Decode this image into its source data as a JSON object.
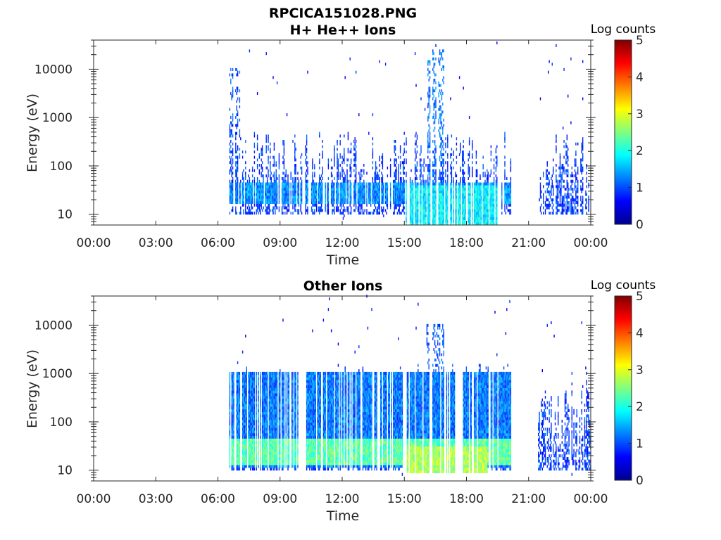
{
  "figure_title": "RPCICA151028.PNG",
  "chart_data": [
    {
      "type": "heatmap",
      "title": "H+ He++ Ions",
      "xlabel": "Time",
      "ylabel": "Energy (eV)",
      "x_ticks": [
        "00:00",
        "03:00",
        "06:00",
        "09:00",
        "12:00",
        "15:00",
        "18:00",
        "21:00",
        "00:00"
      ],
      "x_range_hours": [
        0,
        24
      ],
      "y_scale": "log",
      "y_ticks": [
        10,
        100,
        1000,
        10000
      ],
      "y_range": [
        6,
        40000
      ],
      "colorbar": {
        "label": "Log counts",
        "range": [
          0,
          5
        ],
        "ticks": [
          0,
          1,
          2,
          3,
          4,
          5
        ],
        "colormap": "jet"
      },
      "data_intervals_hours": [
        [
          6.55,
          20.15
        ],
        [
          21.45,
          24.0
        ]
      ],
      "features": [
        {
          "description": "burst",
          "center_hour": 6.6,
          "energy_max": 10000,
          "level": 1
        },
        {
          "description": "burst",
          "center_hour": 16.5,
          "energy_max": 25000,
          "level": 1.2
        },
        {
          "description": "band",
          "hours": [
            6.55,
            20.15
          ],
          "energy_range": [
            15,
            45
          ],
          "level": 1.3
        },
        {
          "description": "band",
          "hours": [
            15.0,
            19.5
          ],
          "energy_range": [
            6,
            40
          ],
          "level": 1.8
        }
      ],
      "colors": {
        "background": "#ffffff",
        "axis": "#262626"
      }
    },
    {
      "type": "heatmap",
      "title": "Other Ions",
      "xlabel": "Time",
      "ylabel": "Energy (eV)",
      "x_ticks": [
        "00:00",
        "03:00",
        "06:00",
        "09:00",
        "12:00",
        "15:00",
        "18:00",
        "21:00",
        "00:00"
      ],
      "x_range_hours": [
        0,
        24
      ],
      "y_scale": "log",
      "y_ticks": [
        10,
        100,
        1000,
        10000
      ],
      "y_range": [
        6,
        40000
      ],
      "colorbar": {
        "label": "Log counts",
        "range": [
          0,
          5
        ],
        "ticks": [
          0,
          1,
          2,
          3,
          4,
          5
        ],
        "colormap": "jet"
      },
      "data_intervals_hours": [
        [
          6.55,
          20.15
        ],
        [
          21.45,
          24.0
        ]
      ],
      "features": [
        {
          "description": "broad",
          "hours": [
            6.55,
            20.15
          ],
          "energy_range": [
            10,
            1000
          ],
          "level": 1.2
        },
        {
          "description": "band",
          "hours": [
            6.55,
            20.15
          ],
          "energy_range": [
            12,
            45
          ],
          "level": 2.3
        },
        {
          "description": "band",
          "hours": [
            15.0,
            19.0
          ],
          "energy_range": [
            8,
            30
          ],
          "level": 2.7
        },
        {
          "description": "burst",
          "center_hour": 16.5,
          "energy_max": 10000,
          "level": 1
        }
      ],
      "colors": {
        "background": "#ffffff",
        "axis": "#262626"
      }
    }
  ]
}
